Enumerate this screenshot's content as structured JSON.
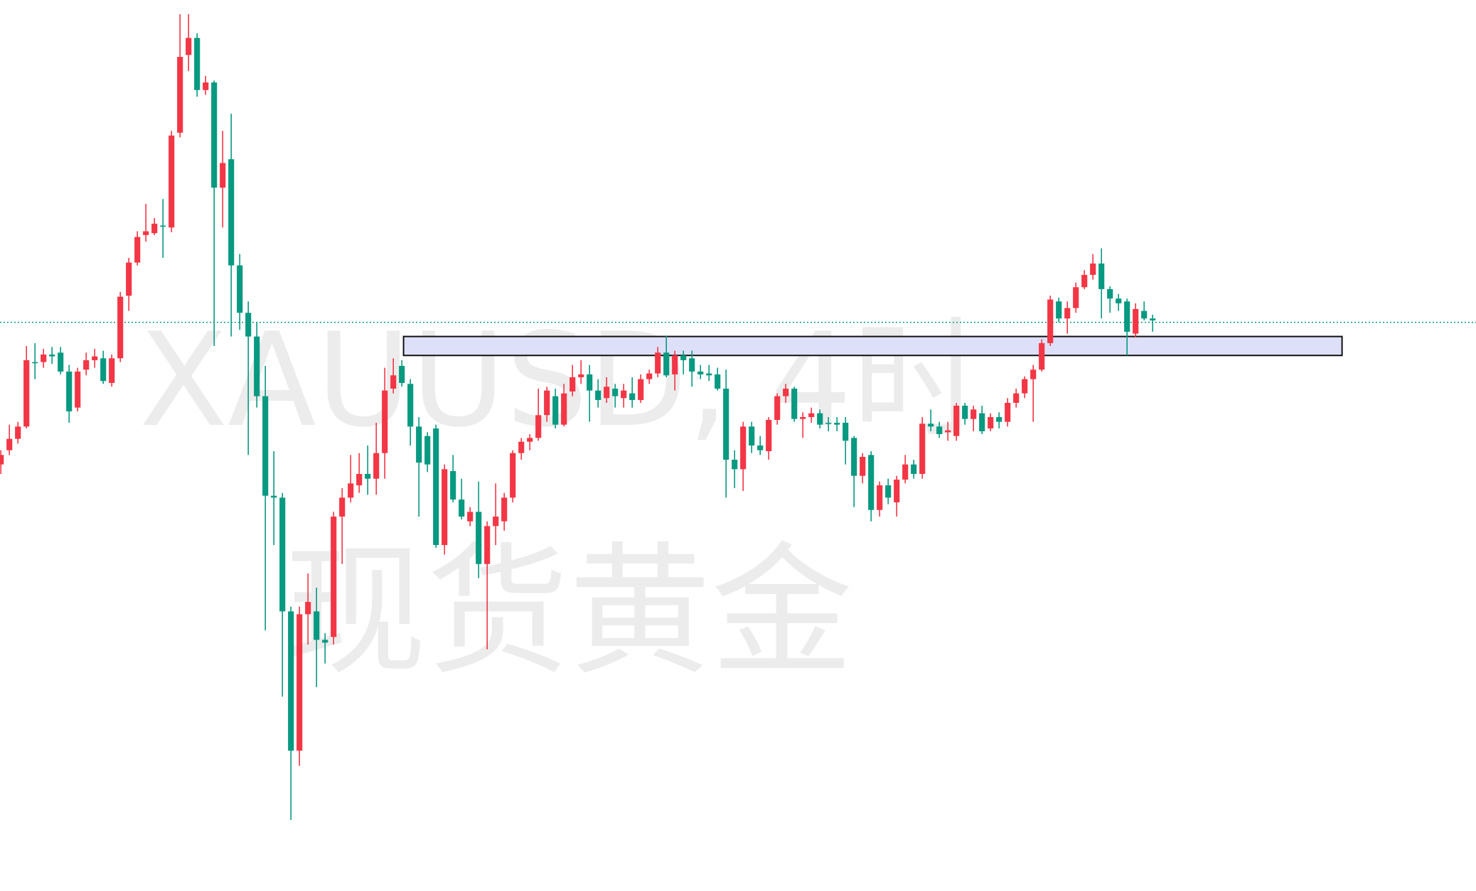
{
  "chart_data": {
    "type": "candlestick",
    "watermark_symbol": "XAUUSD, 4时",
    "watermark_name": "现货黄金",
    "up_color": "#f23645",
    "down_color": "#089981",
    "xlim": [
      -0.1,
      172.9
    ],
    "ylim": [
      0,
      940
    ],
    "price_line": 600,
    "price_line_color": "#089981",
    "zone": {
      "x": [
        47.2,
        157.2
      ],
      "y": [
        565,
        585
      ],
      "color": "#dde0f8"
    },
    "open": [
      450,
      465,
      477,
      490,
      558,
      558,
      566,
      568,
      548,
      510,
      550,
      560,
      562,
      536,
      562,
      628,
      663,
      692,
      694,
      702,
      700,
      800,
      882,
      900,
      845,
      853,
      742,
      772,
      660,
      610,
      585,
      522,
      417,
      415,
      295,
      148,
      292,
      295,
      265,
      268,
      395,
      415,
      428,
      440,
      435,
      462,
      530,
      554,
      535,
      490,
      480,
      488,
      365,
      443,
      413,
      390,
      400,
      345,
      385,
      390,
      415,
      462,
      474,
      478,
      502,
      522,
      492,
      527,
      542,
      545,
      528,
      520,
      530,
      520,
      525,
      518,
      540,
      546,
      568,
      545,
      565,
      562,
      548,
      546,
      545,
      530,
      455,
      445,
      490,
      470,
      464,
      497,
      522,
      530,
      498,
      500,
      504,
      494,
      494,
      494,
      478,
      438,
      460,
      402,
      428,
      410,
      434,
      450,
      440,
      493,
      490,
      484,
      480,
      512,
      498,
      504,
      488,
      500,
      495,
      515,
      525,
      540,
      550,
      578,
      622,
      604,
      615,
      637,
      650,
      662,
      635,
      625,
      622,
      588,
      612,
      604
    ],
    "high": [
      465,
      492,
      495,
      575,
      578,
      572,
      574,
      574,
      555,
      552,
      568,
      572,
      570,
      566,
      632,
      668,
      696,
      725,
      710,
      730,
      802,
      925,
      925,
      905,
      860,
      855,
      802,
      820,
      672,
      622,
      600,
      554,
      464,
      420,
      300,
      300,
      335,
      320,
      272,
      400,
      425,
      460,
      462,
      470,
      494,
      552,
      562,
      560,
      540,
      500,
      484,
      492,
      450,
      460,
      435,
      405,
      432,
      390,
      430,
      420,
      465,
      478,
      482,
      530,
      532,
      530,
      535,
      555,
      560,
      555,
      540,
      542,
      535,
      535,
      542,
      545,
      550,
      574,
      586,
      570,
      570,
      570,
      555,
      555,
      552,
      550,
      465,
      495,
      495,
      480,
      500,
      525,
      535,
      532,
      505,
      510,
      508,
      500,
      500,
      500,
      480,
      462,
      464,
      432,
      435,
      438,
      460,
      455,
      500,
      508,
      495,
      495,
      515,
      515,
      512,
      512,
      504,
      505,
      520,
      530,
      543,
      555,
      582,
      628,
      626,
      622,
      642,
      655,
      672,
      678,
      638,
      630,
      625,
      620,
      622,
      608
    ],
    "low": [
      440,
      460,
      472,
      488,
      540,
      552,
      556,
      545,
      494,
      506,
      544,
      552,
      535,
      532,
      558,
      612,
      660,
      685,
      692,
      668,
      695,
      795,
      865,
      838,
      840,
      575,
      700,
      585,
      592,
      460,
      510,
      275,
      365,
      205,
      75,
      132,
      260,
      215,
      240,
      260,
      345,
      410,
      420,
      418,
      418,
      435,
      525,
      532,
      470,
      395,
      442,
      362,
      355,
      410,
      392,
      385,
      330,
      255,
      365,
      380,
      410,
      455,
      465,
      475,
      495,
      488,
      490,
      522,
      535,
      495,
      510,
      515,
      510,
      510,
      510,
      515,
      535,
      542,
      542,
      528,
      545,
      532,
      540,
      538,
      528,
      415,
      425,
      422,
      462,
      460,
      455,
      492,
      515,
      495,
      478,
      494,
      488,
      485,
      485,
      450,
      405,
      430,
      390,
      395,
      408,
      395,
      430,
      435,
      435,
      485,
      478,
      475,
      475,
      492,
      485,
      482,
      485,
      488,
      490,
      510,
      520,
      495,
      548,
      575,
      600,
      588,
      610,
      635,
      645,
      604,
      610,
      612,
      565,
      584,
      602,
      590
    ],
    "close": [
      460,
      477,
      490,
      560,
      558,
      566,
      564,
      548,
      506,
      548,
      560,
      564,
      538,
      562,
      627,
      663,
      690,
      696,
      704,
      702,
      797,
      880,
      900,
      845,
      853,
      742,
      768,
      660,
      610,
      585,
      522,
      417,
      415,
      295,
      148,
      292,
      305,
      265,
      262,
      395,
      415,
      430,
      440,
      435,
      462,
      528,
      544,
      536,
      490,
      452,
      450,
      365,
      445,
      413,
      395,
      400,
      345,
      385,
      395,
      415,
      462,
      474,
      478,
      502,
      528,
      492,
      525,
      542,
      545,
      528,
      518,
      532,
      522,
      528,
      518,
      540,
      546,
      568,
      544,
      565,
      560,
      548,
      545,
      544,
      530,
      455,
      445,
      490,
      470,
      465,
      497,
      522,
      530,
      498,
      500,
      504,
      492,
      494,
      492,
      475,
      438,
      458,
      402,
      428,
      415,
      434,
      450,
      440,
      493,
      490,
      482,
      486,
      512,
      498,
      508,
      485,
      500,
      495,
      515,
      525,
      540,
      550,
      578,
      624,
      604,
      615,
      637,
      650,
      662,
      635,
      625,
      620,
      590,
      614,
      604,
      602
    ]
  }
}
